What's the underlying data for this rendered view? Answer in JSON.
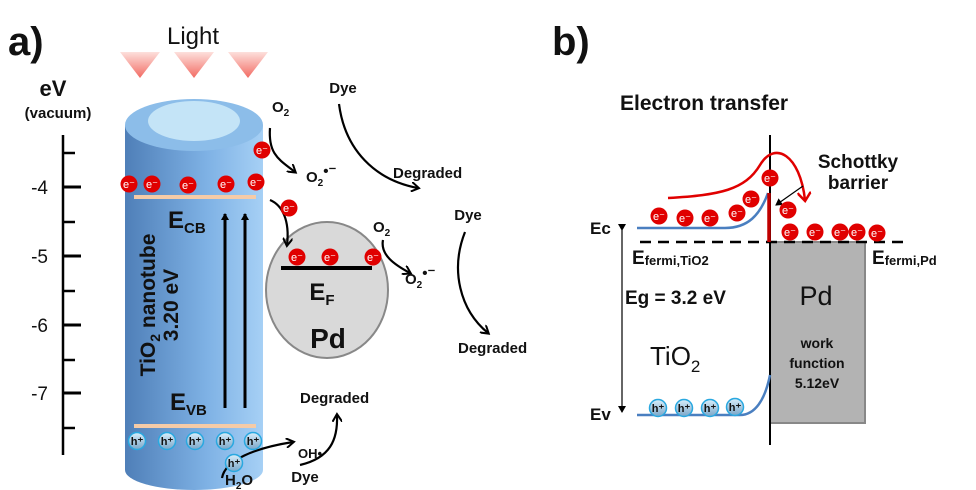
{
  "panel_a": {
    "label": "a)",
    "light": "Light",
    "axis_unit": "eV",
    "axis_ref": "(vacuum)",
    "axis_ticks": [
      "-4",
      "-5",
      "-6",
      "-7"
    ],
    "tube_name": "TiO",
    "tube_sub": "2",
    "tube_name_rest": " nanotube",
    "bandgap": "3.20 eV",
    "ecb": {
      "main": "E",
      "sub": "CB"
    },
    "evb": {
      "main": "E",
      "sub": "VB"
    },
    "ef": {
      "main": "E",
      "sub": "F"
    },
    "metal": "Pd",
    "electron": "e⁻",
    "hole": "h⁺",
    "o2": {
      "main": "O",
      "sub": "2"
    },
    "superoxide": {
      "main": "O",
      "sub": "2",
      "sup": "•⁻"
    },
    "dye": "Dye",
    "degraded": "Degraded",
    "hydroxyl": "OH•",
    "water": {
      "main": "H",
      "sub": "2",
      "rest": "O"
    }
  },
  "panel_b": {
    "label": "b)",
    "title": "Electron transfer",
    "ec": "Ec",
    "ev": "Ev",
    "fermi_tio2": {
      "main": "E",
      "sub": "fermi,TiO2"
    },
    "fermi_pd": {
      "main": "E",
      "sub": "fermi,Pd"
    },
    "eg": "Eg = 3.2 eV",
    "tio2": {
      "main": "TiO",
      "sub": "2"
    },
    "metal": "Pd",
    "work_function": [
      "work",
      "function",
      "5.12eV"
    ],
    "schottky": [
      "Schottky",
      "barrier"
    ],
    "electron": "e⁻",
    "hole": "h⁺"
  },
  "colors": {
    "tube": "#7fb2e5",
    "band_edge": "#f5cba7",
    "electron": "#e00000",
    "hole_ring": "#29a8e0",
    "pd_particle": "#d9d9d9",
    "pd_block": "#b3b3b3",
    "band_curve": "#4a7fc0",
    "arrow_red": "#e00000",
    "light_arrow": "#f4837d"
  }
}
